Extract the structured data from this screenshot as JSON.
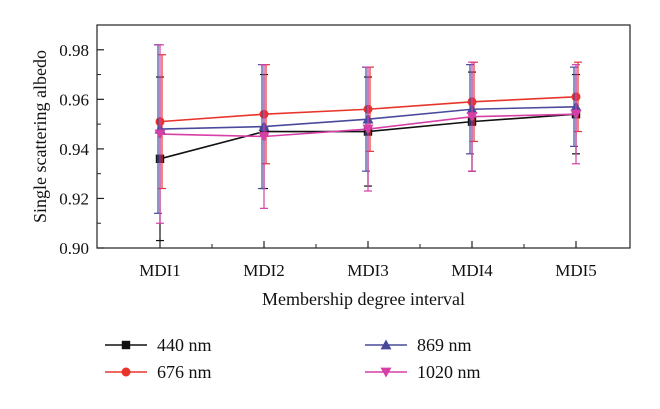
{
  "chart_data": {
    "type": "line",
    "title": "",
    "xlabel": "Membership degree interval",
    "ylabel": "Single scattering albedo",
    "categories": [
      "MDI1",
      "MDI2",
      "MDI3",
      "MDI4",
      "MDI5"
    ],
    "ylim": [
      0.9,
      0.99
    ],
    "yticks": [
      0.9,
      0.92,
      0.94,
      0.96,
      0.98
    ],
    "ytick_labels": [
      "0.90",
      "0.92",
      "0.94",
      "0.96",
      "0.98"
    ],
    "grid": false,
    "legend_position": "bottom",
    "series": [
      {
        "name": "440 nm",
        "color": "#111111",
        "marker": "square",
        "values": [
          0.936,
          0.947,
          0.947,
          0.951,
          0.954
        ],
        "errors": [
          0.033,
          0.023,
          0.022,
          0.02,
          0.016
        ]
      },
      {
        "name": "676 nm",
        "color": "#e8352b",
        "marker": "circle",
        "values": [
          0.951,
          0.954,
          0.956,
          0.959,
          0.961
        ],
        "errors": [
          0.027,
          0.02,
          0.017,
          0.016,
          0.014
        ]
      },
      {
        "name": "869 nm",
        "color": "#4a4a9c",
        "marker": "triangle-up",
        "values": [
          0.948,
          0.949,
          0.952,
          0.956,
          0.957
        ],
        "errors": [
          0.034,
          0.025,
          0.021,
          0.018,
          0.016
        ]
      },
      {
        "name": "1020 nm",
        "color": "#d63fa6",
        "marker": "triangle-down",
        "values": [
          0.946,
          0.945,
          0.948,
          0.953,
          0.954
        ],
        "errors": [
          0.036,
          0.029,
          0.025,
          0.022,
          0.02
        ]
      }
    ]
  }
}
